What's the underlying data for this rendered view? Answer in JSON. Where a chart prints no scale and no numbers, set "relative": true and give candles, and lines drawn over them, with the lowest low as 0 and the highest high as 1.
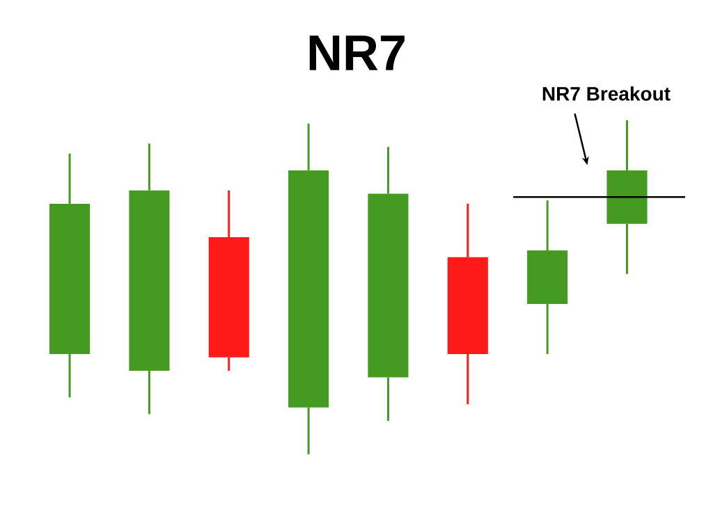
{
  "chart_data": {
    "type": "candlestick",
    "title": "NR7",
    "relative": true,
    "categories": [
      null,
      null,
      null,
      null,
      null,
      null,
      null,
      null
    ],
    "ohlc": [
      [
        0.3,
        0.9,
        0.17,
        0.75
      ],
      [
        0.25,
        0.93,
        0.12,
        0.79
      ],
      [
        0.65,
        0.79,
        0.25,
        0.29
      ],
      [
        0.14,
        0.99,
        0,
        0.85
      ],
      [
        0.23,
        0.92,
        0.1,
        0.78
      ],
      [
        0.59,
        0.75,
        0.15,
        0.3
      ],
      [
        0.45,
        0.76,
        0.3,
        0.61
      ],
      [
        0.69,
        1,
        0.54,
        0.85
      ]
    ],
    "colors": [
      "#459a22",
      "#459a22",
      "#ff1a1a",
      "#459a22",
      "#459a22",
      "#ff1a1a",
      "#459a22",
      "#459a22"
    ],
    "ref_lines": [
      {
        "axis": "y",
        "value": 0.77,
        "label": "NR7 Breakout",
        "color": "#000000"
      }
    ]
  }
}
